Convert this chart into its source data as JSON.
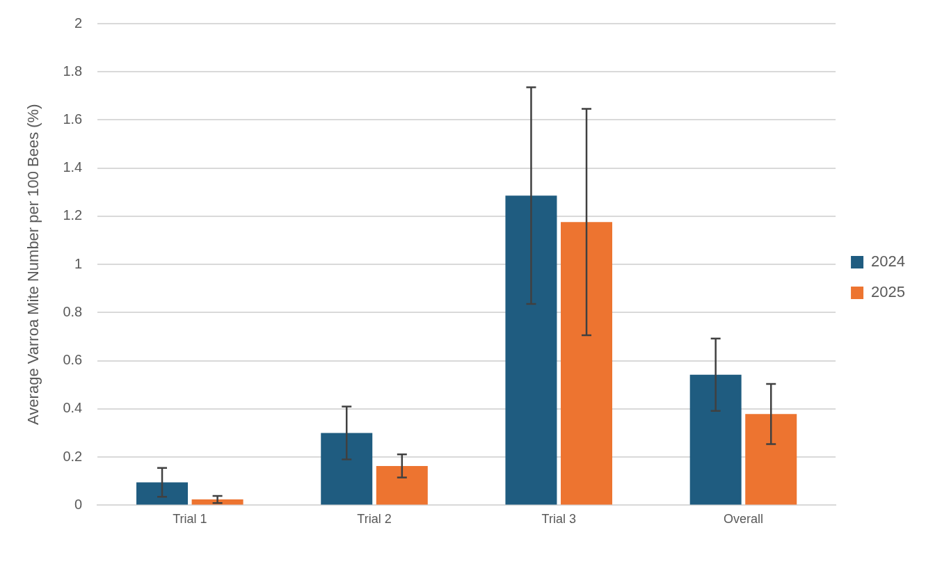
{
  "chart_data": {
    "type": "bar",
    "ylabel": "Average Varroa Mite Number per 100 Bees (%)",
    "categories": [
      "Trial 1",
      "Trial 2",
      "Trial 3",
      "Overall"
    ],
    "series": [
      {
        "name": "2024",
        "color": "#1f5c80",
        "values": [
          0.095,
          0.3,
          1.286,
          0.542
        ],
        "errors": [
          0.06,
          0.11,
          0.45,
          0.15
        ]
      },
      {
        "name": "2025",
        "color": "#ed7430",
        "values": [
          0.024,
          0.163,
          1.176,
          0.379
        ],
        "errors": [
          0.015,
          0.048,
          0.47,
          0.125
        ]
      }
    ],
    "ylim": [
      0,
      2
    ],
    "yticks": [
      0,
      0.2,
      0.4,
      0.6,
      0.8,
      1,
      1.2,
      1.4,
      1.6,
      1.8,
      2
    ],
    "grid": "y",
    "legend": "right"
  }
}
